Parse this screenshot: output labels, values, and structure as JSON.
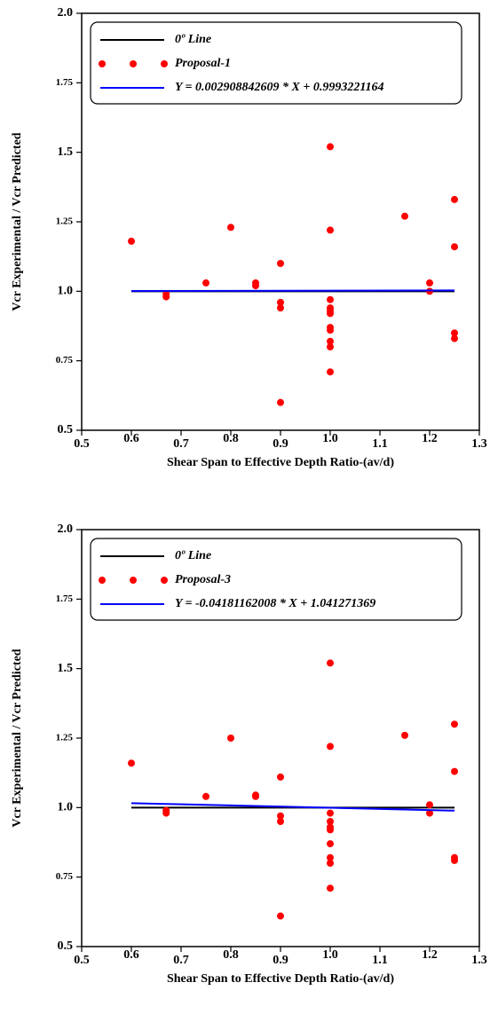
{
  "chart_data": [
    {
      "type": "scatter",
      "xlabel": "Shear Span to Effective Depth Ratio-(av/d)",
      "ylabel": "Vcr Experimental / Vcr Predicted",
      "xlim": [
        0.5,
        1.3
      ],
      "xticks": [
        0.5,
        0.6,
        0.7,
        0.8,
        0.9,
        {
          "value": 1,
          "label": "1.0"
        },
        1.1,
        1.2,
        1.3
      ],
      "ylim": [
        0.5,
        2
      ],
      "yticks": [
        0.5,
        0.75,
        {
          "value": 1,
          "label": "1.0"
        },
        1.25,
        1.5,
        1.75,
        {
          "value": 2,
          "label": "2.0"
        }
      ],
      "legend": "upper",
      "series": [
        {
          "name": "0º Line",
          "color": "#000000",
          "mode": "line",
          "x": [
            0.6,
            1.25
          ],
          "values": [
            1,
            1
          ]
        },
        {
          "name": "Proposal-1",
          "color": "#ff0000",
          "mode": "markers",
          "x": [
            0.6,
            0.67,
            0.67,
            0.75,
            0.8,
            0.85,
            0.85,
            0.9,
            0.9,
            0.9,
            0.9,
            1,
            1,
            1,
            1,
            1,
            1,
            1,
            1,
            1,
            1,
            1,
            1.15,
            1.2,
            1.2,
            1.25,
            1.25,
            1.25,
            1.25
          ],
          "values": [
            1.18,
            0.98,
            0.99,
            1.03,
            1.23,
            1.03,
            1.02,
            1.1,
            0.96,
            0.94,
            0.6,
            1.52,
            1.22,
            0.97,
            0.94,
            0.93,
            0.92,
            0.87,
            0.86,
            0.82,
            0.8,
            0.71,
            1.27,
            1.03,
            1,
            1.33,
            1.16,
            0.85,
            0.83
          ]
        },
        {
          "name": "Y = 0.002908842609 * X + 0.9993221164",
          "color": "#0000ff",
          "mode": "line",
          "x": [
            0.6,
            1.25
          ],
          "values": [
            1.001,
            1.003
          ]
        }
      ]
    },
    {
      "type": "scatter",
      "xlabel": "Shear Span to Effective Depth Ratio-(av/d)",
      "ylabel": "Vcr Experimental / Vcr Predicted",
      "xlim": [
        0.5,
        1.3
      ],
      "xticks": [
        0.5,
        0.6,
        0.7,
        0.8,
        0.9,
        {
          "value": 1,
          "label": "1.0"
        },
        1.1,
        1.2,
        1.3
      ],
      "ylim": [
        0.5,
        2
      ],
      "yticks": [
        0.5,
        0.75,
        {
          "value": 1,
          "label": "1.0"
        },
        1.25,
        1.5,
        1.75,
        {
          "value": 2,
          "label": "2.0"
        }
      ],
      "legend": "upper",
      "series": [
        {
          "name": "0º Line",
          "color": "#000000",
          "mode": "line",
          "x": [
            0.6,
            1.25
          ],
          "values": [
            1,
            1
          ]
        },
        {
          "name": "Proposal-3",
          "color": "#ff0000",
          "mode": "markers",
          "x": [
            0.6,
            0.67,
            0.67,
            0.75,
            0.8,
            0.85,
            0.85,
            0.9,
            0.9,
            0.9,
            0.9,
            1,
            1,
            1,
            1,
            1,
            1,
            1,
            1,
            1,
            1,
            1.15,
            1.2,
            1.2,
            1.25,
            1.25,
            1.25,
            1.25
          ],
          "values": [
            1.16,
            0.99,
            0.98,
            1.04,
            1.25,
            1.04,
            1.045,
            1.11,
            0.97,
            0.95,
            0.61,
            1.52,
            1.22,
            0.98,
            0.95,
            0.93,
            0.92,
            0.87,
            0.82,
            0.8,
            0.71,
            1.26,
            1.01,
            0.98,
            1.3,
            1.13,
            0.82,
            0.81
          ]
        },
        {
          "name": "Y = -0.04181162008 * X + 1.041271369",
          "color": "#0000ff",
          "mode": "line",
          "x": [
            0.6,
            1.25
          ],
          "values": [
            1.016,
            0.989
          ]
        }
      ]
    }
  ]
}
